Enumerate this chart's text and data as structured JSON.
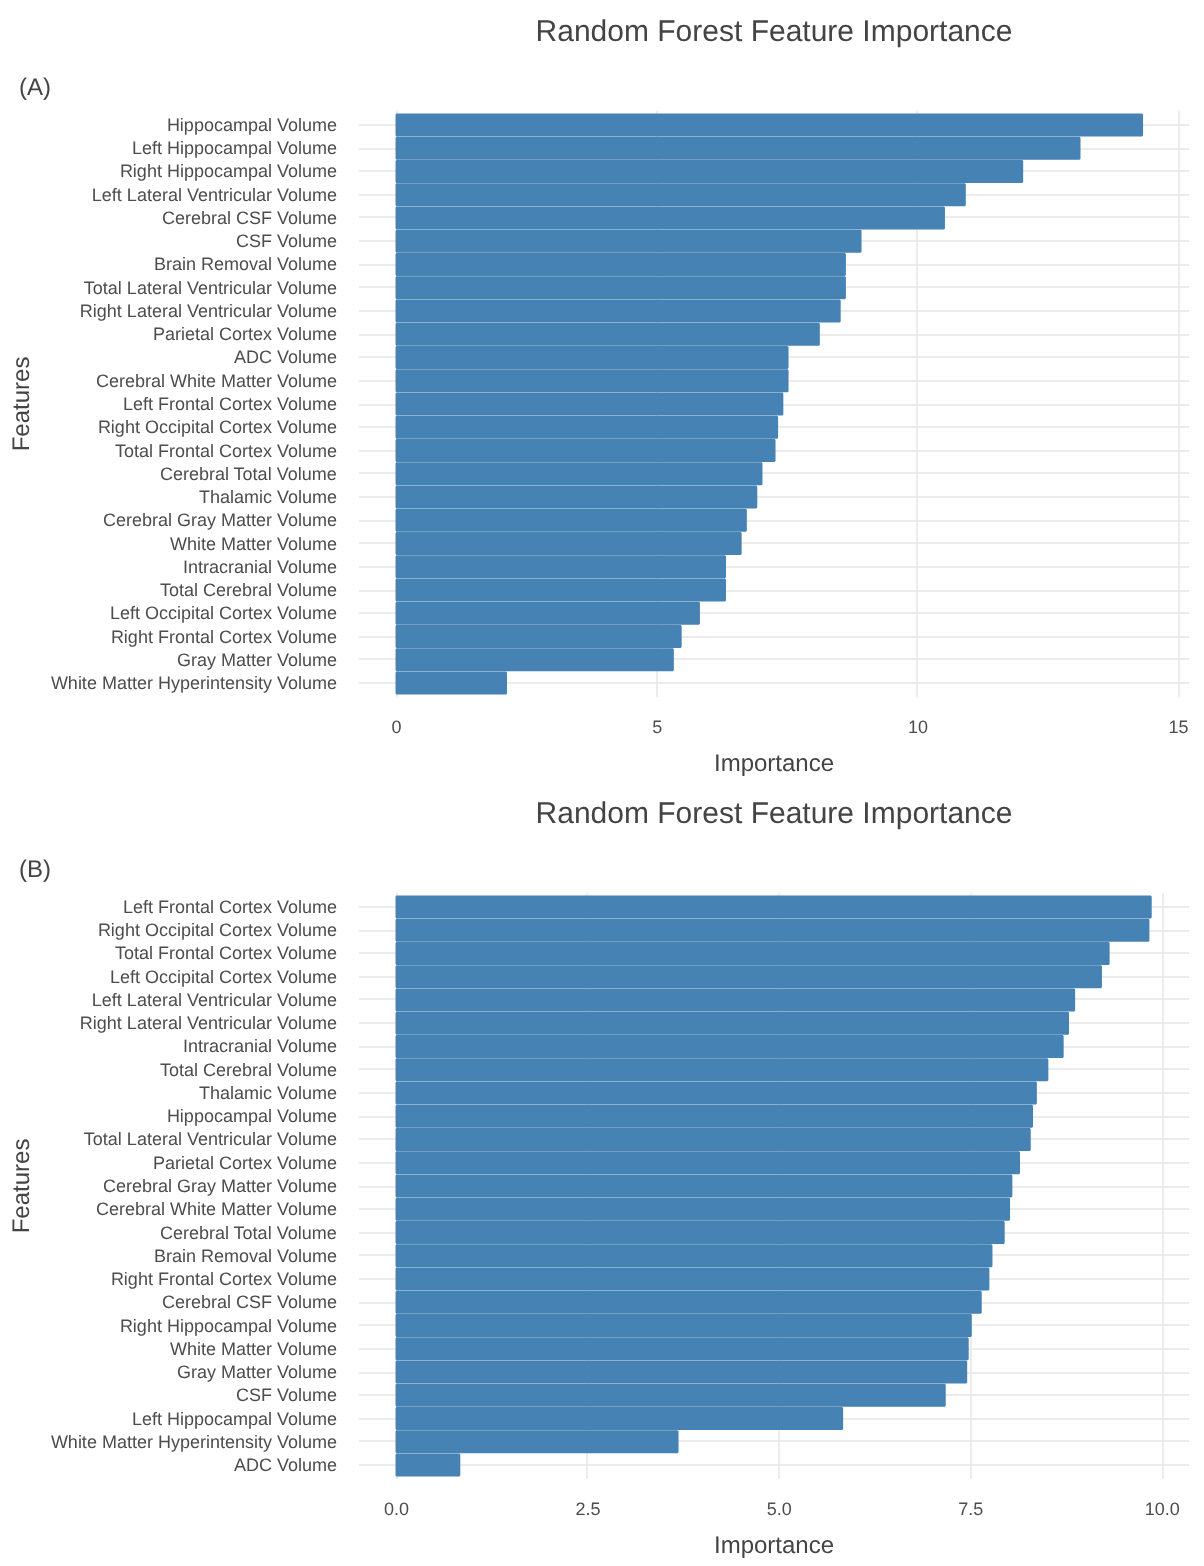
{
  "chart_data": [
    {
      "type": "bar",
      "orientation": "horizontal",
      "title": "Random Forest Feature Importance",
      "xlabel": "Importance",
      "ylabel": "Features",
      "annotations": [
        "(A)"
      ],
      "grid": true,
      "color": "#4682b4",
      "categories": [
        "Hippocampal Volume",
        "Left Hippocampal Volume",
        "Right Hippocampal Volume",
        "Left Lateral Ventricular Volume",
        "Cerebral CSF Volume",
        "CSF Volume",
        "Brain Removal Volume",
        "Total Lateral Ventricular Volume",
        "Right Lateral Ventricular Volume",
        "Parietal Cortex Volume",
        "ADC Volume",
        "Cerebral White Matter Volume",
        "Left Frontal Cortex Volume",
        "Right Occipital Cortex Volume",
        "Total Frontal Cortex Volume",
        "Cerebral Total Volume",
        "Thalamic Volume",
        "Cerebral Gray Matter Volume",
        "White Matter Volume",
        "Intracranial Volume",
        "Total Cerebral Volume",
        "Left Occipital Cortex Volume",
        "Right Frontal Cortex Volume",
        "Gray Matter Volume",
        "White Matter Hyperintensity Volume"
      ],
      "values": [
        14.3,
        13.1,
        12.0,
        10.9,
        10.5,
        8.9,
        8.6,
        8.6,
        8.5,
        8.1,
        7.5,
        7.5,
        7.4,
        7.3,
        7.25,
        7.0,
        6.9,
        6.7,
        6.6,
        6.3,
        6.3,
        5.8,
        5.45,
        5.3,
        2.1
      ],
      "xlim": [
        -0.72,
        15.2
      ],
      "xticks": [
        0,
        5,
        10,
        15
      ]
    },
    {
      "type": "bar",
      "orientation": "horizontal",
      "title": "Random Forest Feature Importance",
      "xlabel": "Importance",
      "ylabel": "Features",
      "annotations": [
        "(B)"
      ],
      "grid": true,
      "color": "#4682b4",
      "categories": [
        "Left Frontal Cortex Volume",
        "Right Occipital Cortex Volume",
        "Total Frontal Cortex Volume",
        "Left Occipital Cortex Volume",
        "Left Lateral Ventricular Volume",
        "Right Lateral Ventricular Volume",
        "Intracranial Volume",
        "Total Cerebral Volume",
        "Thalamic Volume",
        "Hippocampal Volume",
        "Total Lateral Ventricular Volume",
        "Parietal Cortex Volume",
        "Cerebral Gray Matter Volume",
        "Cerebral White Matter Volume",
        "Cerebral Total Volume",
        "Brain Removal Volume",
        "Right Frontal Cortex Volume",
        "Cerebral CSF Volume",
        "Right Hippocampal Volume",
        "White Matter Volume",
        "Gray Matter Volume",
        "CSF Volume",
        "Left Hippocampal Volume",
        "White Matter Hyperintensity Volume",
        "ADC Volume"
      ],
      "values": [
        9.85,
        9.82,
        9.3,
        9.2,
        8.85,
        8.77,
        8.7,
        8.5,
        8.35,
        8.3,
        8.27,
        8.13,
        8.03,
        8.0,
        7.93,
        7.77,
        7.73,
        7.63,
        7.5,
        7.46,
        7.44,
        7.16,
        5.82,
        3.67,
        0.82
      ],
      "xlim": [
        -0.49,
        10.35
      ],
      "xticks": [
        {
          "value": 0,
          "label": "0.0"
        },
        {
          "value": 2.5,
          "label": "2.5"
        },
        {
          "value": 5,
          "label": "5.0"
        },
        {
          "value": 7.5,
          "label": "7.5"
        },
        {
          "value": 10,
          "label": "10.0"
        }
      ]
    }
  ]
}
